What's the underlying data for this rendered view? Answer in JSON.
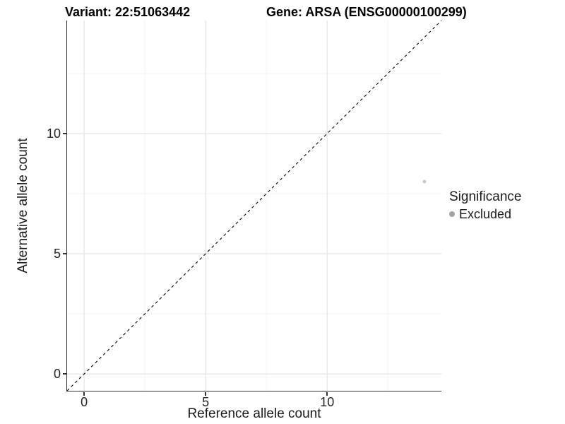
{
  "header": {
    "variant_title": "Variant: 22:51063442",
    "gene_title": "Gene: ARSA (ENSG00000100299)"
  },
  "chart_data": {
    "type": "scatter",
    "xlabel": "Reference allele count",
    "ylabel": "Alternative allele count",
    "xlim": [
      -0.7,
      14.7
    ],
    "ylim": [
      -0.7,
      14.7
    ],
    "x_ticks": [
      0,
      5,
      10
    ],
    "y_ticks": [
      0,
      5,
      10
    ],
    "x_minor_ticks": [
      2.5,
      7.5,
      12.5
    ],
    "y_minor_ticks": [
      2.5,
      7.5,
      12.5
    ],
    "grid": true,
    "identity_line": {
      "style": "dashed",
      "color": "#000000",
      "from": -0.7,
      "to": 14.7
    },
    "series": [
      {
        "name": "Excluded",
        "color": "#c5c5c5",
        "point_radius": 2.4,
        "points": [
          {
            "x": 14,
            "y": 8
          }
        ]
      }
    ],
    "legend": {
      "position": "right",
      "title": "Significance",
      "items": [
        {
          "label": "Excluded",
          "color": "#a4a4a4"
        }
      ]
    },
    "colors": {
      "axis_line": "#333333",
      "major_grid": "#e6e6e6",
      "minor_grid": "#f2f2f2",
      "background": "#ffffff"
    }
  }
}
